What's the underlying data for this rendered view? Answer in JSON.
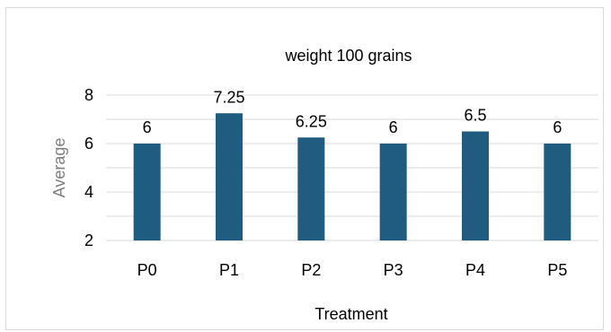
{
  "chart_data": {
    "type": "bar",
    "title": "weight 100 grains",
    "xlabel": "Treatment",
    "ylabel": "Average",
    "categories": [
      "P0",
      "P1",
      "P2",
      "P3",
      "P4",
      "P5"
    ],
    "values": [
      6,
      7.25,
      6.25,
      6,
      6.5,
      6
    ],
    "data_labels": [
      "6",
      "7.25",
      "6.25",
      "6",
      "6.5",
      "6"
    ],
    "ylim": [
      2,
      8
    ],
    "yticks": [
      2,
      4,
      6,
      8
    ],
    "grid": true,
    "legend": "none",
    "colors": {
      "bar": "#1f5c80",
      "grid": "#d9d9d9"
    }
  }
}
